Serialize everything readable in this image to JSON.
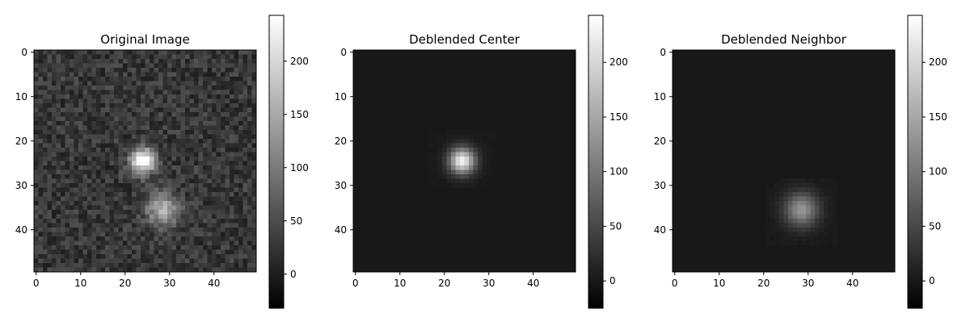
{
  "chart_data": [
    {
      "type": "heatmap",
      "title": "Original Image",
      "xlim": [
        0,
        49
      ],
      "ylim": [
        0,
        49
      ],
      "x_ticks": [
        0,
        10,
        20,
        30,
        40
      ],
      "y_ticks": [
        0,
        10,
        20,
        30,
        40
      ],
      "colormap": "gray",
      "colorbar_range": [
        -32,
        243
      ],
      "colorbar_ticks": [
        0,
        50,
        100,
        150,
        200
      ],
      "sources": [
        {
          "cx": 24,
          "cy": 24.5,
          "peak": 230,
          "sigma": 2.0
        },
        {
          "cx": 28.5,
          "cy": 35.5,
          "peak": 130,
          "sigma": 2.6
        }
      ],
      "background": 28,
      "noise_amplitude": 28,
      "grid": false
    },
    {
      "type": "heatmap",
      "title": "Deblended Center",
      "xlim": [
        0,
        49
      ],
      "ylim": [
        0,
        49
      ],
      "x_ticks": [
        0,
        10,
        20,
        30,
        40
      ],
      "y_ticks": [
        0,
        10,
        20,
        30,
        40
      ],
      "colormap": "gray",
      "colorbar_range": [
        -25,
        243
      ],
      "colorbar_ticks": [
        0,
        50,
        100,
        150,
        200
      ],
      "sources": [
        {
          "cx": 24,
          "cy": 24.5,
          "peak": 230,
          "sigma": 2.0
        }
      ],
      "footprint": {
        "x0": 17,
        "x1": 31,
        "y0": 18,
        "y1": 30
      },
      "background": 0,
      "noise_amplitude": 6,
      "grid": false
    },
    {
      "type": "heatmap",
      "title": "Deblended Neighbor",
      "xlim": [
        0,
        49
      ],
      "ylim": [
        0,
        49
      ],
      "x_ticks": [
        0,
        10,
        20,
        30,
        40
      ],
      "y_ticks": [
        0,
        10,
        20,
        30,
        40
      ],
      "colormap": "gray",
      "colorbar_range": [
        -25,
        243
      ],
      "colorbar_ticks": [
        0,
        50,
        100,
        150,
        200
      ],
      "sources": [
        {
          "cx": 28.5,
          "cy": 35.5,
          "peak": 130,
          "sigma": 2.6
        }
      ],
      "footprint": {
        "x0": 21,
        "x1": 36,
        "y0": 29,
        "y1": 43
      },
      "background": 0,
      "noise_amplitude": 8,
      "grid": false
    }
  ]
}
